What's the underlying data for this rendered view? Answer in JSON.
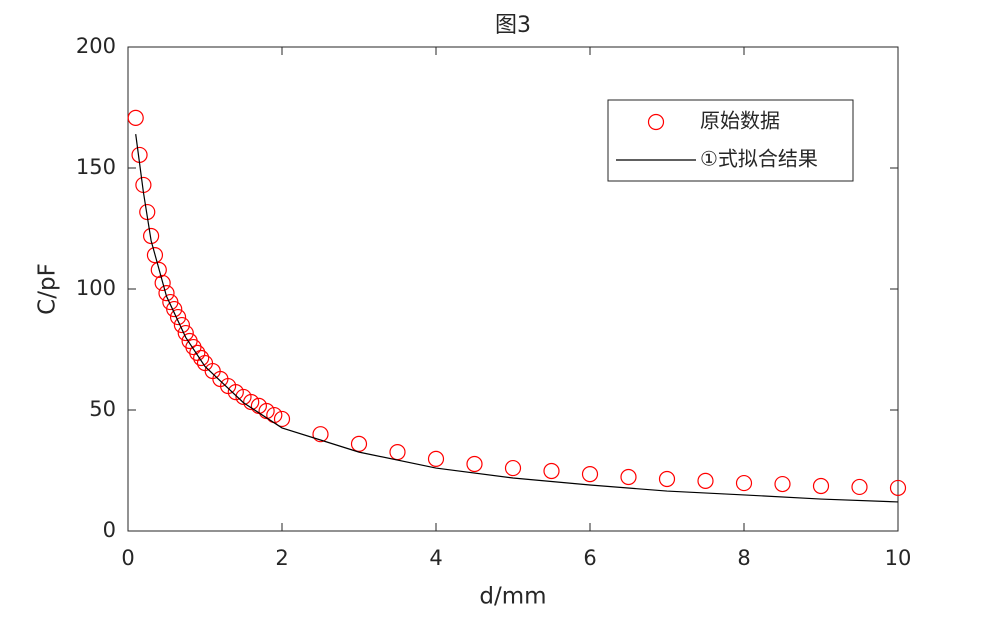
{
  "chart_data": {
    "type": "scatter",
    "title": "图3",
    "x_label": "d/mm",
    "y_label": "C/pF",
    "xlim": [
      0,
      10
    ],
    "ylim": [
      0,
      200
    ],
    "xticks": [
      0,
      2,
      4,
      6,
      8,
      10
    ],
    "yticks": [
      0,
      50,
      100,
      150,
      200
    ],
    "grid": false,
    "legend": "upper right",
    "series": [
      {
        "name": "原始数据",
        "type": "scatter",
        "color": "#ff0000",
        "x": [
          0.1,
          0.15,
          0.2,
          0.25,
          0.3,
          0.35,
          0.4,
          0.45,
          0.5,
          0.55,
          0.6,
          0.65,
          0.7,
          0.75,
          0.8,
          0.85,
          0.9,
          0.95,
          1.0,
          1.1,
          1.2,
          1.3,
          1.4,
          1.5,
          1.6,
          1.7,
          1.8,
          1.9,
          2.0,
          2.5,
          3,
          3.5,
          4,
          4.5,
          5,
          5.5,
          6,
          6.5,
          7,
          7.5,
          8,
          8.5,
          9,
          9.5,
          10
        ],
        "values": [
          170.7,
          155.4,
          143,
          131.8,
          121.9,
          114,
          107.9,
          102.5,
          98.3,
          94.6,
          91.7,
          88.4,
          85.1,
          81.8,
          78.5,
          76,
          73.6,
          71.5,
          69.4,
          66.1,
          62.8,
          59.9,
          57.4,
          55.4,
          53.3,
          51.7,
          49.6,
          47.9,
          46.3,
          40,
          36,
          32.6,
          29.8,
          27.7,
          26,
          24.8,
          23.5,
          22.3,
          21.5,
          20.7,
          19.8,
          19.4,
          18.6,
          18.2,
          17.8
        ]
      },
      {
        "name": "①式拟合结果",
        "type": "line",
        "color": "#000000",
        "x": [
          0.1,
          0.2,
          0.3,
          0.5,
          0.75,
          1,
          1.5,
          2,
          2.5,
          3,
          4,
          5,
          6,
          7,
          8,
          9,
          10
        ],
        "values": [
          164,
          140,
          120,
          97,
          80,
          68,
          53,
          42.6,
          37.6,
          32.6,
          26,
          21.9,
          19,
          16.5,
          14.9,
          13.2,
          12
        ]
      }
    ]
  }
}
